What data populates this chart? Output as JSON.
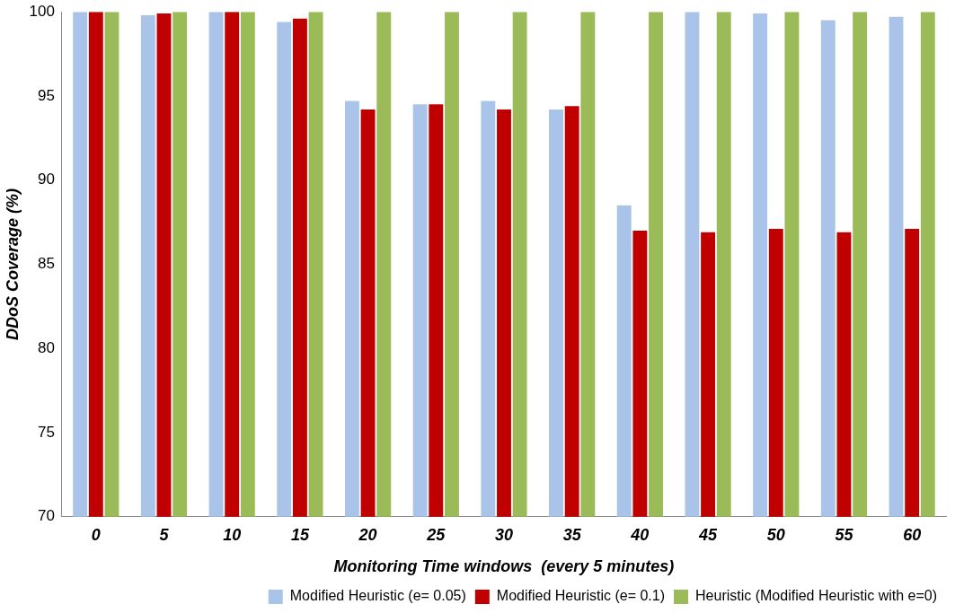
{
  "chart_data": {
    "type": "bar",
    "xlabel": "Monitoring Time windows  (every 5 minutes)",
    "ylabel": "DDoS Coverage (%)",
    "categories": [
      "0",
      "5",
      "10",
      "15",
      "20",
      "25",
      "30",
      "35",
      "40",
      "45",
      "50",
      "55",
      "60"
    ],
    "series": [
      {
        "name": "Modified Heuristic (e= 0.05)",
        "color": "#a9c4e8",
        "values": [
          100,
          99.8,
          100,
          99.4,
          94.7,
          94.5,
          94.7,
          94.2,
          88.5,
          100,
          99.9,
          99.5,
          99.7
        ]
      },
      {
        "name": "Modified Heuristic (e= 0.1)",
        "color": "#c00000",
        "values": [
          100,
          99.9,
          100,
          99.6,
          94.2,
          94.5,
          94.2,
          94.4,
          87.0,
          86.9,
          87.1,
          86.9,
          87.1
        ]
      },
      {
        "name": "Heuristic (Modified Heuristic with e=0)",
        "color": "#9bbb59",
        "values": [
          100,
          100,
          100,
          100,
          100,
          100,
          100,
          100,
          100,
          100,
          100,
          100,
          100
        ]
      }
    ],
    "ylim": [
      70,
      100
    ],
    "yticks": [
      70,
      75,
      80,
      85,
      90,
      95,
      100
    ],
    "grid": false,
    "legend": "bottom right"
  }
}
